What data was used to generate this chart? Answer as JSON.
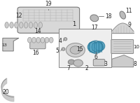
{
  "background_color": "#ffffff",
  "label_fontsize": 5.5,
  "label_fontsize_small": 4.5,
  "label_color": "#222222"
}
